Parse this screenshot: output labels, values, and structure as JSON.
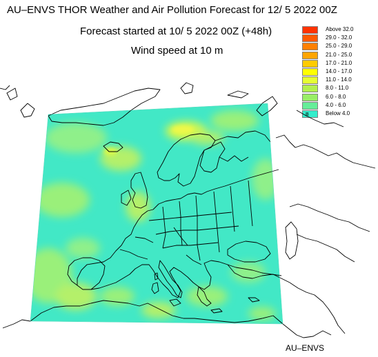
{
  "header": {
    "title": "AU–ENVS THOR Weather and Air Pollution Forecast for 12/ 5 2022  00Z",
    "forecast_started": "Forecast started at 10/ 5 2022  00Z (+48h)",
    "variable": "Wind speed at 10 m"
  },
  "credit": "AU–ENVS",
  "legend": {
    "items": [
      {
        "label": "Above    32.0",
        "color": "#ff3300"
      },
      {
        "label": "29.0  -  32.0",
        "color": "#ff5a00"
      },
      {
        "label": "25.0  -  29.0",
        "color": "#ff8000"
      },
      {
        "label": "21.0  -  25.0",
        "color": "#ffa500"
      },
      {
        "label": "17.0  -  21.0",
        "color": "#ffcc00"
      },
      {
        "label": "14.0  -  17.0",
        "color": "#ffff00"
      },
      {
        "label": "11.0  -  14.0",
        "color": "#e6ff33"
      },
      {
        "label": "8.0  -  11.0",
        "color": "#b3f04d"
      },
      {
        "label": "6.0  -   8.0",
        "color": "#99ee66"
      },
      {
        "label": "4.0  -   6.0",
        "color": "#66ee99"
      },
      {
        "label": "Below     4.0",
        "color": "#33eecc"
      }
    ],
    "below_marker": "B"
  },
  "map": {
    "dominant_color": "#40eac8",
    "coast_color": "#000000"
  }
}
